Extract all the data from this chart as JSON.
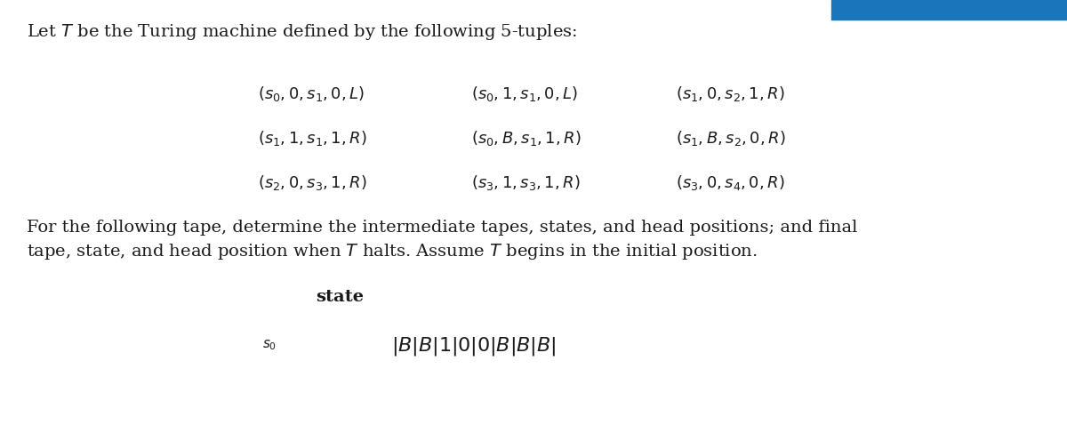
{
  "bg_color": "#ffffff",
  "title_line": "Let $T$ be the Turing machine defined by the following 5-tuples:",
  "tuples_col1": [
    "$(s_0, 0, s_1, 0, L)$",
    "$(s_1, 1, s_1, 1, R)$",
    "$(s_2, 0, s_3, 1, R)$"
  ],
  "tuples_col2": [
    "$(s_0, 1, s_1, 0, L)$",
    "$(s_0, B, s_1, 1, R)$",
    "$(s_3, 1, s_3, 1, R)$"
  ],
  "tuples_col3": [
    "$(s_1, 0, s_2, 1, R)$",
    "$(s_1, B, s_2, 0, R)$",
    "$(s_3, 0, s_4, 0, R)$"
  ],
  "paragraph_line1": "For the following tape, determine the intermediate tapes, states, and head positions; and final",
  "paragraph_line2": "tape, state, and head position when $T$ halts. Assume $T$ begins in the initial position.",
  "state_label": "state",
  "tape_state": "$s_0$",
  "tape_content": "$| B | B | 1 | 0 | 0 | B | B | B |$",
  "blue_bar_color": "#1a75bb",
  "text_color": "#1a1a1a",
  "tuple_color": "#1a1a1a",
  "fs_title": 14,
  "fs_tuples": 13,
  "fs_para": 14,
  "fs_state_label": 14,
  "fs_tape_state": 11,
  "fs_tape": 16
}
